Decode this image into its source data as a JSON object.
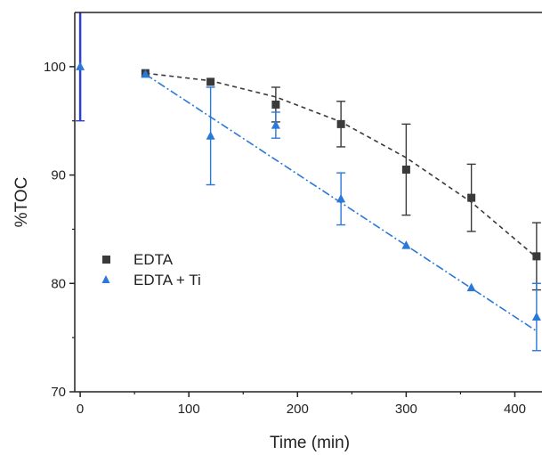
{
  "chart_data": {
    "type": "scatter",
    "title": "",
    "xlabel": "Time (min)",
    "ylabel": "%TOC",
    "xlim": [
      -5,
      425
    ],
    "ylim": [
      70,
      105
    ],
    "x_ticks": [
      0,
      100,
      200,
      300,
      400
    ],
    "y_ticks": [
      70,
      80,
      90,
      100
    ],
    "x_tick_labels": [
      "0",
      "100",
      "200",
      "300",
      "400"
    ],
    "y_tick_labels": [
      "70",
      "80",
      "90",
      "100"
    ],
    "legend_position": "left-middle",
    "grid": false,
    "series": [
      {
        "name": "EDTA",
        "marker": "square",
        "color": "#3a3a3a",
        "x": [
          60,
          120,
          180,
          240,
          300,
          360,
          420
        ],
        "y": [
          99.4,
          98.6,
          96.5,
          94.7,
          90.5,
          87.9,
          82.5
        ],
        "err": [
          0.3,
          0.3,
          1.6,
          2.1,
          4.2,
          3.1,
          3.1
        ],
        "fit": {
          "style": "dashed",
          "x": [
            60,
            120,
            180,
            240,
            300,
            360,
            420
          ],
          "y": [
            99.4,
            98.7,
            97.2,
            94.9,
            91.6,
            87.5,
            82.4
          ]
        }
      },
      {
        "name": "EDTA + Ti",
        "marker": "triangle",
        "color": "#2a78d8",
        "x": [
          0,
          60,
          120,
          180,
          240,
          300,
          360,
          420
        ],
        "y": [
          100,
          99.3,
          93.6,
          94.6,
          87.8,
          83.5,
          79.6,
          76.9
        ],
        "err": [
          5,
          0.3,
          4.5,
          1.2,
          2.4,
          0.3,
          0.3,
          3.1
        ],
        "fit": {
          "style": "dashdot",
          "x": [
            60,
            420
          ],
          "y": [
            99.3,
            75.6
          ]
        }
      }
    ]
  }
}
